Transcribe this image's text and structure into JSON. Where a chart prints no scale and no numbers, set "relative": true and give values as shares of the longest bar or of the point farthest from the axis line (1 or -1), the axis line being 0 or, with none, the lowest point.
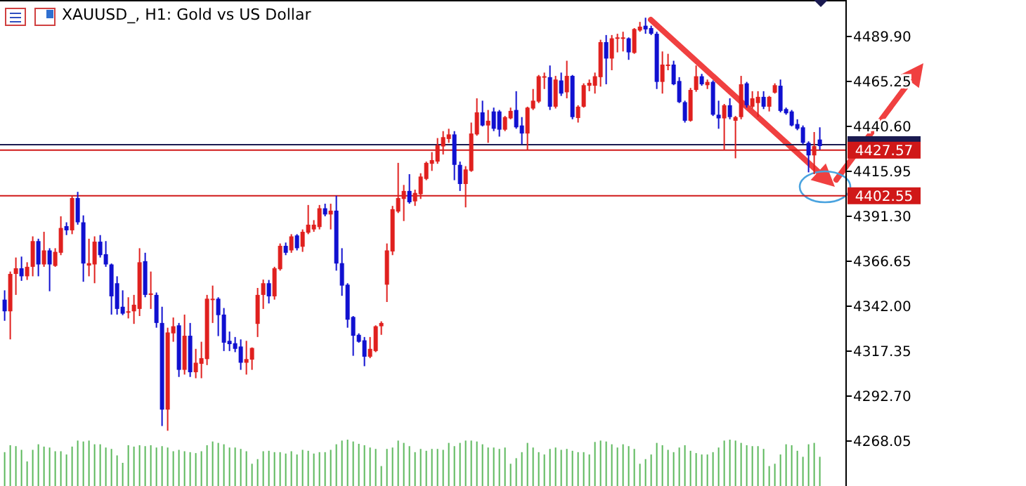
{
  "chart_data": [
    {
      "type": "candlestick",
      "title": "XAUUSD_, H1:  Gold vs US Dollar",
      "categories": [
        null,
        null,
        null,
        null,
        null,
        null,
        null,
        null,
        null,
        null,
        null,
        null,
        null,
        null,
        null,
        null,
        null,
        null,
        null,
        null,
        null,
        null,
        null,
        null,
        null,
        null,
        null,
        null,
        null,
        null,
        null,
        null,
        null,
        null,
        null,
        null,
        null,
        null,
        null,
        null,
        null,
        null,
        null,
        null,
        null,
        null,
        null,
        null,
        null,
        null,
        null,
        null,
        null,
        null,
        null,
        null,
        null,
        null,
        null,
        null,
        null,
        null,
        null,
        null,
        null,
        null,
        null,
        null,
        null,
        null,
        null,
        null,
        null,
        null,
        null,
        null,
        null,
        null,
        null,
        null,
        null,
        null,
        null,
        null,
        null,
        null,
        null,
        null,
        null,
        null,
        null,
        null,
        null,
        null,
        null,
        null,
        null,
        null,
        null,
        null,
        null,
        null,
        null,
        null,
        null,
        null,
        null,
        null,
        null,
        null,
        null,
        null,
        null,
        null,
        null,
        null,
        null,
        null,
        null,
        null,
        null,
        null,
        null,
        null,
        null,
        null,
        null,
        null,
        null,
        null,
        null,
        null,
        null,
        null,
        null,
        null,
        null,
        null,
        null,
        null,
        null,
        null,
        null,
        null,
        null,
        null
      ],
      "ohlc": [
        [
          4345.6,
          4350.7,
          4334.0,
          4339.2
        ],
        [
          4339.2,
          4361.0,
          4323.8,
          4359.7
        ],
        [
          4359.7,
          4368.7,
          4348.2,
          4362.8
        ],
        [
          4362.8,
          4369.2,
          4355.9,
          4358.4
        ],
        [
          4358.4,
          4366.1,
          4356.4,
          4363.6
        ],
        [
          4363.6,
          4380.3,
          4358.4,
          4377.7
        ],
        [
          4377.7,
          4379.0,
          4358.4,
          4364.9
        ],
        [
          4364.9,
          4382.8,
          4363.6,
          4372.6
        ],
        [
          4372.6,
          4373.8,
          4350.2,
          4364.9
        ],
        [
          4364.1,
          4373.8,
          4363.6,
          4371.8
        ],
        [
          4371.3,
          4391.3,
          4370.0,
          4384.9
        ],
        [
          4385.9,
          4388.0,
          4381.0,
          4383.6
        ],
        [
          4383.6,
          4402.6,
          4381.5,
          4401.3
        ],
        [
          4401.3,
          4404.7,
          4386.7,
          4388.0
        ],
        [
          4388.0,
          4391.8,
          4355.4,
          4365.4
        ],
        [
          4364.3,
          4379.0,
          4358.4,
          4365.6
        ],
        [
          4364.9,
          4380.3,
          4354.6,
          4377.4
        ],
        [
          4377.4,
          4381.0,
          4368.7,
          4370.0
        ],
        [
          4370.5,
          4377.7,
          4363.6,
          4364.9
        ],
        [
          4364.9,
          4365.4,
          4337.4,
          4347.4
        ],
        [
          4354.6,
          4358.4,
          4337.4,
          4340.5
        ],
        [
          4341.7,
          4350.7,
          4337.1,
          4337.9
        ],
        [
          4338.7,
          4346.9,
          4335.3,
          4339.2
        ],
        [
          4339.2,
          4348.2,
          4332.3,
          4342.8
        ],
        [
          4340.5,
          4373.8,
          4336.6,
          4366.1
        ],
        [
          4366.7,
          4371.3,
          4346.9,
          4348.2
        ],
        [
          4348.2,
          4361.0,
          4340.5,
          4349.0
        ],
        [
          4348.2,
          4349.5,
          4330.2,
          4332.8
        ],
        [
          4332.8,
          4341.7,
          4276.3,
          4285.3
        ],
        [
          4285.3,
          4330.2,
          4273.7,
          4327.6
        ],
        [
          4327.1,
          4335.8,
          4322.5,
          4331.0
        ],
        [
          4331.5,
          4332.8,
          4303.2,
          4307.1
        ],
        [
          4307.1,
          4337.4,
          4304.5,
          4325.8
        ],
        [
          4325.8,
          4332.8,
          4303.2,
          4305.8
        ],
        [
          4305.8,
          4318.6,
          4302.5,
          4311.0
        ],
        [
          4310.4,
          4322.5,
          4302.5,
          4313.5
        ],
        [
          4313.0,
          4348.2,
          4309.7,
          4346.1
        ],
        [
          4345.6,
          4353.3,
          4332.8,
          4346.1
        ],
        [
          4346.1,
          4346.9,
          4325.6,
          4337.1
        ],
        [
          4337.4,
          4341.0,
          4317.4,
          4322.0
        ],
        [
          4323.0,
          4328.1,
          4317.4,
          4321.2
        ],
        [
          4321.7,
          4325.1,
          4316.8,
          4318.6
        ],
        [
          4319.9,
          4323.8,
          4307.1,
          4311.0
        ],
        [
          4311.0,
          4323.0,
          4304.5,
          4313.0
        ],
        [
          4312.7,
          4319.4,
          4307.1,
          4319.1
        ],
        [
          4332.3,
          4352.0,
          4325.1,
          4348.2
        ],
        [
          4348.2,
          4356.6,
          4340.5,
          4354.6
        ],
        [
          4354.6,
          4356.4,
          4343.5,
          4347.4
        ],
        [
          4347.4,
          4363.6,
          4345.6,
          4362.8
        ],
        [
          4362.3,
          4376.4,
          4361.5,
          4375.1
        ],
        [
          4375.1,
          4376.9,
          4370.0,
          4371.3
        ],
        [
          4372.6,
          4381.5,
          4371.3,
          4380.3
        ],
        [
          4380.8,
          4381.5,
          4372.6,
          4373.8
        ],
        [
          4374.6,
          4384.1,
          4371.8,
          4382.8
        ],
        [
          4382.3,
          4397.5,
          4381.5,
          4386.7
        ],
        [
          4384.1,
          4389.2,
          4382.8,
          4386.7
        ],
        [
          4385.4,
          4397.5,
          4384.1,
          4395.7
        ],
        [
          4395.7,
          4398.2,
          4391.3,
          4392.3
        ],
        [
          4392.3,
          4398.2,
          4384.1,
          4394.4
        ],
        [
          4394.4,
          4402.6,
          4361.5,
          4365.4
        ],
        [
          4365.6,
          4373.8,
          4347.7,
          4353.3
        ],
        [
          4353.8,
          4354.6,
          4330.2,
          4334.6
        ],
        [
          4336.1,
          4336.6,
          4314.8,
          4325.8
        ],
        [
          4326.3,
          4327.1,
          4322.0,
          4322.5
        ],
        [
          4323.3,
          4325.1,
          4309.1,
          4314.3
        ],
        [
          4314.3,
          4325.1,
          4313.5,
          4318.6
        ],
        [
          4317.4,
          4331.5,
          4316.8,
          4331.0
        ],
        [
          4331.0,
          4333.7,
          4326.3,
          4332.8
        ],
        [
          4353.8,
          4376.4,
          4344.3,
          4372.6
        ],
        [
          4372.0,
          4397.0,
          4370.0,
          4395.2
        ],
        [
          4393.9,
          4420.6,
          4393.1,
          4401.3
        ],
        [
          4400.8,
          4408.5,
          4388.7,
          4405.2
        ],
        [
          4405.2,
          4414.4,
          4398.2,
          4399.0
        ],
        [
          4399.5,
          4405.9,
          4397.0,
          4404.1
        ],
        [
          4403.4,
          4414.9,
          4400.8,
          4413.1
        ],
        [
          4411.8,
          4421.3,
          4411.1,
          4420.6
        ],
        [
          4420.1,
          4426.5,
          4416.2,
          4422.1
        ],
        [
          4421.3,
          4434.2,
          4420.1,
          4430.3
        ],
        [
          4429.6,
          4438.0,
          4425.2,
          4434.7
        ],
        [
          4433.7,
          4439.3,
          4431.6,
          4436.2
        ],
        [
          4436.2,
          4438.0,
          4411.1,
          4419.5
        ],
        [
          4419.5,
          4421.3,
          4405.2,
          4409.0
        ],
        [
          4409.0,
          4418.8,
          4396.2,
          4417.0
        ],
        [
          4416.2,
          4442.7,
          4415.7,
          4436.7
        ],
        [
          4436.2,
          4456.0,
          4435.5,
          4448.3
        ],
        [
          4448.3,
          4454.7,
          4440.6,
          4441.1
        ],
        [
          4441.1,
          4449.6,
          4431.6,
          4443.7
        ],
        [
          4448.8,
          4450.9,
          4438.0,
          4439.3
        ],
        [
          4448.8,
          4449.6,
          4435.0,
          4438.8
        ],
        [
          4438.8,
          4446.3,
          4438.0,
          4445.7
        ],
        [
          4445.0,
          4450.9,
          4444.5,
          4449.1
        ],
        [
          4449.6,
          4459.9,
          4439.3,
          4440.1
        ],
        [
          4441.1,
          4445.7,
          4430.8,
          4436.7
        ],
        [
          4436.7,
          4451.4,
          4427.8,
          4450.9
        ],
        [
          4450.4,
          4461.1,
          4449.6,
          4454.7
        ],
        [
          4454.2,
          4468.8,
          4453.4,
          4468.1
        ],
        [
          4467.6,
          4470.1,
          4461.1,
          4468.1
        ],
        [
          4467.6,
          4474.0,
          4449.6,
          4451.4
        ],
        [
          4451.4,
          4468.3,
          4450.4,
          4466.3
        ],
        [
          4465.8,
          4470.1,
          4457.3,
          4458.6
        ],
        [
          4459.3,
          4476.6,
          4456.0,
          4468.3
        ],
        [
          4468.3,
          4468.8,
          4444.5,
          4445.7
        ],
        [
          4445.2,
          4452.2,
          4442.7,
          4451.4
        ],
        [
          4451.4,
          4464.2,
          4450.9,
          4463.2
        ],
        [
          4462.9,
          4466.3,
          4459.9,
          4464.5
        ],
        [
          4462.9,
          4470.1,
          4458.6,
          4468.1
        ],
        [
          4467.6,
          4488.1,
          4462.4,
          4486.8
        ],
        [
          4486.8,
          4490.7,
          4463.7,
          4477.8
        ],
        [
          4477.8,
          4490.7,
          4471.4,
          4488.9
        ],
        [
          4488.9,
          4491.4,
          4481.2,
          4489.4
        ],
        [
          4488.6,
          4492.5,
          4481.7,
          4489.4
        ],
        [
          4488.9,
          4489.4,
          4477.1,
          4481.2
        ],
        [
          4480.9,
          4494.5,
          4480.4,
          4494.0
        ],
        [
          4493.2,
          4497.9,
          4492.5,
          4495.3
        ],
        [
          4495.8,
          4500.2,
          4491.4,
          4493.8
        ],
        [
          4494.5,
          4495.8,
          4490.7,
          4491.4
        ],
        [
          4491.4,
          4492.5,
          4461.1,
          4465.0
        ],
        [
          4465.0,
          4481.7,
          4458.6,
          4474.5
        ],
        [
          4474.0,
          4480.4,
          4471.4,
          4474.5
        ],
        [
          4474.5,
          4476.6,
          4463.2,
          4463.7
        ],
        [
          4465.5,
          4467.6,
          4453.4,
          4453.9
        ],
        [
          4453.9,
          4454.7,
          4442.7,
          4443.7
        ],
        [
          4443.7,
          4461.7,
          4443.2,
          4460.6
        ],
        [
          4460.6,
          4474.0,
          4459.6,
          4468.1
        ],
        [
          4468.1,
          4469.4,
          4462.9,
          4463.7
        ],
        [
          4463.2,
          4466.3,
          4461.1,
          4465.0
        ],
        [
          4465.0,
          4465.8,
          4446.3,
          4447.0
        ],
        [
          4447.0,
          4454.7,
          4439.3,
          4445.0
        ],
        [
          4445.0,
          4452.9,
          4427.8,
          4452.2
        ],
        [
          4452.2,
          4456.0,
          4444.5,
          4445.7
        ],
        [
          4443.7,
          4446.3,
          4423.1,
          4445.7
        ],
        [
          4445.7,
          4468.3,
          4444.5,
          4463.7
        ],
        [
          4464.2,
          4465.0,
          4450.9,
          4452.2
        ],
        [
          4451.4,
          4459.9,
          4450.4,
          4456.0
        ],
        [
          4453.4,
          4459.9,
          4445.7,
          4456.8
        ],
        [
          4456.8,
          4459.9,
          4450.1,
          4451.4
        ],
        [
          4451.4,
          4457.3,
          4448.8,
          4456.8
        ],
        [
          4459.1,
          4464.2,
          4458.6,
          4463.2
        ],
        [
          4462.9,
          4466.3,
          4448.3,
          4449.1
        ],
        [
          4450.1,
          4450.9,
          4447.0,
          4447.8
        ],
        [
          4448.8,
          4449.6,
          4440.6,
          4441.1
        ],
        [
          4441.9,
          4444.5,
          4438.5,
          4439.3
        ],
        [
          4440.1,
          4441.1,
          4430.8,
          4431.6
        ],
        [
          4431.6,
          4432.4,
          4415.4,
          4424.7
        ],
        [
          4424.7,
          4437.5,
          4414.4,
          4429.8
        ],
        [
          4433.4,
          4440.1,
          4427.8,
          4429.8
        ]
      ],
      "colors": [
        "#1010d0",
        "#e0201e",
        "#e0201e",
        "#1010d0",
        "#e0201e",
        "#e0201e",
        "#1010d0",
        "#e0201e",
        "#1010d0",
        "#e0201e",
        "#e0201e",
        "#1010d0",
        "#e0201e",
        "#1010d0",
        "#1010d0",
        "#e0201e",
        "#e0201e",
        "#1010d0",
        "#1010d0",
        "#1010d0",
        "#1010d0",
        "#1010d0",
        "#e0201e",
        "#e0201e",
        "#e0201e",
        "#1010d0",
        "#e0201e",
        "#1010d0",
        "#1010d0",
        "#e0201e",
        "#e0201e",
        "#1010d0",
        "#e0201e",
        "#1010d0",
        "#e0201e",
        "#e0201e",
        "#e0201e",
        "#e0201e",
        "#1010d0",
        "#1010d0",
        "#1010d0",
        "#1010d0",
        "#1010d0",
        "#e0201e",
        "#e0201e",
        "#e0201e",
        "#e0201e",
        "#1010d0",
        "#e0201e",
        "#e0201e",
        "#1010d0",
        "#e0201e",
        "#1010d0",
        "#e0201e",
        "#e0201e",
        "#e0201e",
        "#e0201e",
        "#1010d0",
        "#e0201e",
        "#1010d0",
        "#1010d0",
        "#1010d0",
        "#1010d0",
        "#1010d0",
        "#1010d0",
        "#e0201e",
        "#e0201e",
        "#e0201e",
        "#e0201e",
        "#e0201e",
        "#e0201e",
        "#e0201e",
        "#1010d0",
        "#e0201e",
        "#e0201e",
        "#e0201e",
        "#e0201e",
        "#e0201e",
        "#e0201e",
        "#e0201e",
        "#1010d0",
        "#1010d0",
        "#e0201e",
        "#e0201e",
        "#e0201e",
        "#1010d0",
        "#e0201e",
        "#1010d0",
        "#1010d0",
        "#e0201e",
        "#e0201e",
        "#1010d0",
        "#1010d0",
        "#e0201e",
        "#e0201e",
        "#e0201e",
        "#e0201e",
        "#1010d0",
        "#e0201e",
        "#1010d0",
        "#e0201e",
        "#1010d0",
        "#e0201e",
        "#e0201e",
        "#e0201e",
        "#e0201e",
        "#e0201e",
        "#1010d0",
        "#e0201e",
        "#e0201e",
        "#e0201e",
        "#1010d0",
        "#e0201e",
        "#e0201e",
        "#1010d0",
        "#1010d0",
        "#1010d0",
        "#e0201e",
        "#e0201e",
        "#1010d0",
        "#1010d0",
        "#1010d0",
        "#e0201e",
        "#e0201e",
        "#1010d0",
        "#e0201e",
        "#1010d0",
        "#1010d0",
        "#e0201e",
        "#1010d0",
        "#e0201e",
        "#e0201e",
        "#1010d0",
        "#e0201e",
        "#e0201e",
        "#1010d0",
        "#e0201e",
        "#e0201e",
        "#1010d0",
        "#1010d0",
        "#1010d0",
        "#1010d0",
        "#1010d0",
        "#1010d0",
        "#e0201e",
        "#1010d0"
      ],
      "ylim": [
        4243.4,
        4507.6
      ],
      "yticks": [
        {
          "value": 4489.9,
          "label": "4489.90"
        },
        4465.25,
        {
          "value": 4440.6,
          "label": "4440.60"
        },
        4415.95,
        {
          "value": 4391.3,
          "label": "4391.30"
        },
        4366.65,
        {
          "value": 4342,
          "label": "4342.00"
        },
        4317.35,
        {
          "value": 4292.7,
          "label": "4292.70"
        },
        4268.05
      ],
      "tick_labels": "y",
      "ref_lines": [
        {
          "axis": "y",
          "value": 4430.6,
          "label": null,
          "color": "#1a1a50"
        },
        {
          "axis": "y",
          "value": 4427.57,
          "label": "4427.57",
          "color": "#d01818"
        },
        {
          "axis": "y",
          "value": 4402.55,
          "label": "4402.55",
          "color": "#d01818"
        }
      ]
    },
    {
      "type": "bar",
      "relative": true,
      "color": "#5cb85c",
      "categories": [
        null,
        null,
        null,
        null,
        null,
        null,
        null,
        null,
        null,
        null,
        null,
        null,
        null,
        null,
        null,
        null,
        null,
        null,
        null,
        null,
        null,
        null,
        null,
        null,
        null,
        null,
        null,
        null,
        null,
        null,
        null,
        null,
        null,
        null,
        null,
        null,
        null,
        null,
        null,
        null,
        null,
        null,
        null,
        null,
        null,
        null,
        null,
        null,
        null,
        null,
        null,
        null,
        null,
        null,
        null,
        null,
        null,
        null,
        null,
        null,
        null,
        null,
        null,
        null,
        null,
        null,
        null,
        null,
        null,
        null,
        null,
        null,
        null,
        null,
        null,
        null,
        null,
        null,
        null,
        null,
        null,
        null,
        null,
        null,
        null,
        null,
        null,
        null,
        null,
        null,
        null,
        null,
        null,
        null,
        null,
        null,
        null,
        null,
        null,
        null,
        null,
        null,
        null,
        null,
        null,
        null,
        null,
        null,
        null,
        null,
        null,
        null,
        null,
        null,
        null,
        null,
        null,
        null,
        null,
        null,
        null,
        null,
        null,
        null,
        null,
        null,
        null,
        null,
        null,
        null,
        null,
        null,
        null,
        null,
        null,
        null,
        null,
        null,
        null,
        null,
        null,
        null,
        null,
        null,
        null,
        null
      ],
      "values": [
        0.73,
        0.88,
        0.86,
        0.78,
        0.53,
        0.78,
        0.9,
        0.85,
        0.83,
        0.75,
        0.75,
        0.68,
        0.85,
        0.98,
        0.96,
        0.98,
        0.9,
        0.9,
        0.83,
        0.8,
        0.66,
        0.5,
        0.88,
        0.85,
        0.88,
        0.86,
        0.88,
        0.83,
        0.86,
        0.83,
        0.75,
        0.78,
        0.75,
        0.73,
        0.71,
        0.75,
        0.88,
        0.96,
        0.93,
        0.9,
        0.83,
        0.83,
        0.8,
        0.75,
        0.48,
        0.58,
        0.75,
        0.76,
        0.73,
        0.73,
        0.7,
        0.75,
        0.68,
        0.78,
        0.76,
        0.7,
        0.73,
        0.73,
        0.78,
        0.9,
        0.98,
        1,
        0.96,
        0.91,
        0.88,
        0.83,
        0.8,
        0.43,
        0.8,
        0.83,
        0.98,
        0.93,
        0.86,
        0.73,
        0.8,
        0.76,
        0.8,
        0.8,
        0.78,
        0.93,
        0.86,
        0.93,
        0.98,
        0.98,
        0.96,
        0.9,
        0.83,
        0.83,
        0.8,
        0.83,
        0.48,
        0.6,
        0.73,
        0.93,
        0.83,
        0.73,
        0.68,
        0.8,
        0.83,
        0.78,
        0.8,
        0.76,
        0.73,
        0.73,
        0.68,
        0.95,
        0.98,
        0.96,
        0.9,
        0.83,
        0.9,
        0.86,
        0.8,
        0.48,
        0.58,
        0.68,
        0.93,
        0.88,
        0.78,
        0.73,
        0.83,
        0.88,
        0.76,
        0.71,
        0.68,
        0.68,
        0.73,
        0.83,
        0.98,
        1,
        0.98,
        0.93,
        0.88,
        0.86,
        0.86,
        0.8,
        0.43,
        0.48,
        0.68,
        0.9,
        0.88,
        0.76,
        0.63,
        0.9,
        0.93,
        0.63
      ]
    }
  ]
}
